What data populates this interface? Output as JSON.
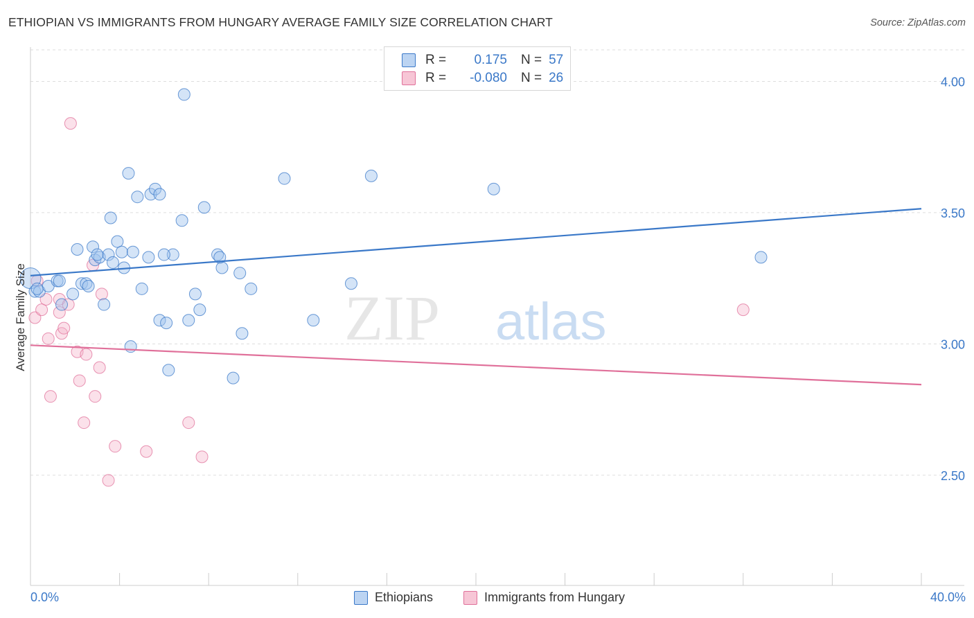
{
  "title": "ETHIOPIAN VS IMMIGRANTS FROM HUNGARY AVERAGE FAMILY SIZE CORRELATION CHART",
  "source": "Source: ZipAtlas.com",
  "watermark": {
    "zip": "ZIP",
    "atlas": "atlas"
  },
  "legend": {
    "r_label": "R =",
    "n_label": "N =",
    "rows": [
      {
        "r": "0.175",
        "n": "57"
      },
      {
        "r": "-0.080",
        "n": "26"
      }
    ]
  },
  "x_axis": {
    "min_label": "0.0%",
    "max_label": "40.0%"
  },
  "colors": {
    "blue": "#3a78c8",
    "blue_fill": "#bcd4f2",
    "pink": "#e0709a",
    "pink_fill": "#f7c6d6",
    "grid": "#dddddd"
  },
  "chart_data": {
    "type": "scatter",
    "title": "ETHIOPIAN VS IMMIGRANTS FROM HUNGARY AVERAGE FAMILY SIZE CORRELATION CHART",
    "xlabel": "",
    "ylabel": "Average Family Size",
    "xlim": [
      0,
      40
    ],
    "ylim": [
      2.08,
      4.12
    ],
    "y_ticks": [
      2.5,
      3.0,
      3.5,
      4.0
    ],
    "y_tick_labels": [
      "2.50",
      "3.00",
      "3.50",
      "4.00"
    ],
    "grid": true,
    "legend_position": "top-center",
    "series": [
      {
        "name": "Ethiopians",
        "color": "#3a78c8",
        "r": 0.175,
        "n": 57,
        "trend": {
          "x0": 0,
          "y0": 3.26,
          "x1": 40,
          "y1": 3.515
        },
        "points": [
          [
            0.0,
            3.25
          ],
          [
            0.2,
            3.2
          ],
          [
            0.4,
            3.2
          ],
          [
            0.8,
            3.22
          ],
          [
            1.2,
            3.24
          ],
          [
            1.3,
            3.24
          ],
          [
            1.9,
            3.19
          ],
          [
            2.1,
            3.36
          ],
          [
            2.3,
            3.23
          ],
          [
            2.5,
            3.23
          ],
          [
            2.6,
            3.22
          ],
          [
            2.8,
            3.37
          ],
          [
            2.9,
            3.32
          ],
          [
            3.1,
            3.33
          ],
          [
            3.3,
            3.15
          ],
          [
            3.5,
            3.34
          ],
          [
            3.6,
            3.48
          ],
          [
            3.7,
            3.31
          ],
          [
            3.9,
            3.39
          ],
          [
            4.1,
            3.35
          ],
          [
            4.2,
            3.29
          ],
          [
            4.4,
            3.65
          ],
          [
            4.5,
            2.99
          ],
          [
            4.8,
            3.56
          ],
          [
            5.0,
            3.21
          ],
          [
            5.3,
            3.33
          ],
          [
            5.4,
            3.57
          ],
          [
            5.6,
            3.59
          ],
          [
            5.8,
            3.57
          ],
          [
            5.8,
            3.09
          ],
          [
            6.1,
            3.08
          ],
          [
            6.2,
            2.9
          ],
          [
            6.4,
            3.34
          ],
          [
            6.8,
            3.47
          ],
          [
            6.9,
            3.95
          ],
          [
            7.1,
            3.09
          ],
          [
            7.4,
            3.19
          ],
          [
            7.6,
            3.13
          ],
          [
            7.8,
            3.52
          ],
          [
            8.4,
            3.34
          ],
          [
            8.6,
            3.29
          ],
          [
            9.1,
            2.87
          ],
          [
            9.4,
            3.27
          ],
          [
            9.5,
            3.04
          ],
          [
            9.9,
            3.21
          ],
          [
            11.4,
            3.63
          ],
          [
            12.7,
            3.09
          ],
          [
            14.4,
            3.23
          ],
          [
            15.3,
            3.64
          ],
          [
            20.8,
            3.59
          ],
          [
            32.8,
            3.33
          ],
          [
            0.3,
            3.21
          ],
          [
            1.4,
            3.15
          ],
          [
            6.0,
            3.34
          ],
          [
            3.0,
            3.34
          ],
          [
            4.6,
            3.35
          ],
          [
            8.5,
            3.33
          ]
        ]
      },
      {
        "name": "Immigrants from Hungary",
        "color": "#e0709a",
        "r": -0.08,
        "n": 26,
        "trend": {
          "x0": 0,
          "y0": 2.995,
          "x1": 40,
          "y1": 2.845
        },
        "points": [
          [
            0.2,
            3.1
          ],
          [
            0.3,
            3.24
          ],
          [
            0.5,
            3.13
          ],
          [
            0.7,
            3.17
          ],
          [
            0.8,
            3.02
          ],
          [
            0.9,
            2.8
          ],
          [
            1.3,
            3.17
          ],
          [
            1.3,
            3.12
          ],
          [
            1.4,
            3.04
          ],
          [
            1.5,
            3.06
          ],
          [
            1.7,
            3.15
          ],
          [
            1.8,
            3.84
          ],
          [
            2.1,
            2.97
          ],
          [
            2.2,
            2.86
          ],
          [
            2.4,
            2.7
          ],
          [
            2.5,
            2.96
          ],
          [
            2.8,
            3.3
          ],
          [
            2.9,
            2.8
          ],
          [
            3.1,
            2.91
          ],
          [
            3.2,
            3.19
          ],
          [
            3.5,
            2.48
          ],
          [
            3.8,
            2.61
          ],
          [
            5.2,
            2.59
          ],
          [
            7.1,
            2.7
          ],
          [
            7.7,
            2.57
          ],
          [
            32.0,
            3.13
          ]
        ]
      }
    ]
  }
}
